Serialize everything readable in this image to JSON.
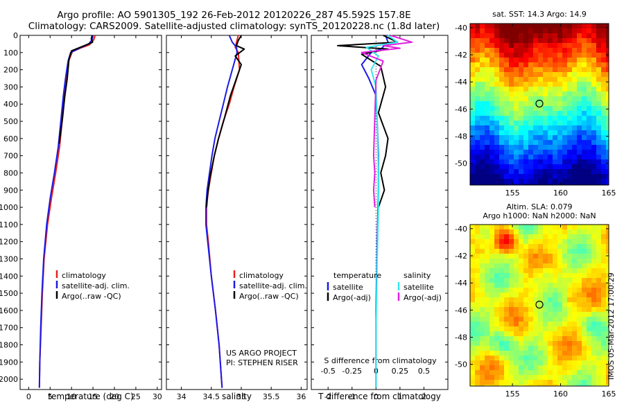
{
  "figure": {
    "title_line1": "Argo profile: AO 5901305_192 26-Feb-2012 20120226_287 45.592S 157.8E",
    "title_line2": "Climatology: CARS2009. Satellite-adjusted climatology: synTS_20120228.nc (1.8d later)",
    "project_note": "US ARGO PROJECT",
    "pi_note": "PI: STEPHEN RISER",
    "timestamp": "IMOS 05-Mar-2012 17:00:29"
  },
  "colors": {
    "climatology": "#e8201c",
    "satellite": "#1a1ae6",
    "argo": "#000000",
    "sal_satellite": "#33e6f0",
    "sal_argo": "#e020e0"
  },
  "chart_data": [
    {
      "type": "line",
      "name": "temperature-profile",
      "xlabel": "temperature (deg C)",
      "ylabel": "",
      "xlim": [
        -2,
        31
      ],
      "ylim": [
        2060,
        0
      ],
      "x_ticks": [
        0,
        5,
        10,
        15,
        20,
        25,
        30
      ],
      "y_ticks": [
        0,
        100,
        200,
        300,
        400,
        500,
        600,
        700,
        800,
        900,
        1000,
        1100,
        1200,
        1300,
        1400,
        1500,
        1600,
        1700,
        1800,
        1900,
        2000
      ],
      "legend": [
        "climatology",
        "satellite-adj. clim.",
        "Argo(..raw -QC)"
      ],
      "series": [
        {
          "name": "climatology",
          "color_key": "climatology",
          "points": [
            [
              15.5,
              0
            ],
            [
              15.2,
              25
            ],
            [
              14.2,
              55
            ],
            [
              12.0,
              75
            ],
            [
              10.2,
              95
            ],
            [
              9.3,
              150
            ],
            [
              8.8,
              250
            ],
            [
              8.3,
              350
            ],
            [
              7.8,
              500
            ],
            [
              7.2,
              650
            ],
            [
              6.3,
              800
            ],
            [
              5.3,
              950
            ],
            [
              4.4,
              1100
            ],
            [
              3.6,
              1300
            ],
            [
              3.2,
              1500
            ],
            [
              2.9,
              1700
            ],
            [
              2.6,
              1900
            ],
            [
              2.5,
              2050
            ]
          ]
        },
        {
          "name": "satellite-adj. clim.",
          "color_key": "satellite",
          "points": [
            [
              15.0,
              0
            ],
            [
              14.8,
              25
            ],
            [
              14.0,
              50
            ],
            [
              11.8,
              75
            ],
            [
              9.8,
              100
            ],
            [
              9.2,
              150
            ],
            [
              8.6,
              250
            ],
            [
              8.1,
              350
            ],
            [
              7.5,
              500
            ],
            [
              6.9,
              650
            ],
            [
              6.0,
              800
            ],
            [
              5.0,
              950
            ],
            [
              4.2,
              1100
            ],
            [
              3.5,
              1300
            ],
            [
              3.1,
              1500
            ],
            [
              2.8,
              1700
            ],
            [
              2.6,
              1900
            ],
            [
              2.5,
              2050
            ]
          ]
        },
        {
          "name": "Argo(..raw -QC)",
          "color_key": "argo",
          "points": [
            [
              14.8,
              0
            ],
            [
              14.6,
              20
            ],
            [
              14.9,
              40
            ],
            [
              13.5,
              55
            ],
            [
              11.5,
              75
            ],
            [
              10.0,
              90
            ],
            [
              9.4,
              140
            ],
            [
              9.0,
              250
            ],
            [
              8.4,
              360
            ],
            [
              7.9,
              480
            ],
            [
              7.1,
              630
            ]
          ]
        }
      ]
    },
    {
      "type": "line",
      "name": "salinity-profile",
      "xlabel": "salinity",
      "ylabel": "",
      "xlim": [
        33.75,
        36.1
      ],
      "ylim": [
        2060,
        0
      ],
      "x_ticks": [
        34,
        34.5,
        35,
        35.5,
        36
      ],
      "x_tick_labels": [
        "34",
        "34.5",
        "35",
        "35.5",
        "36"
      ],
      "legend": [
        "climatology",
        "satellite-adj. clim.",
        "Argo(..raw -QC)"
      ],
      "series": [
        {
          "name": "climatology",
          "color_key": "climatology",
          "points": [
            [
              34.95,
              0
            ],
            [
              34.92,
              40
            ],
            [
              34.9,
              70
            ],
            [
              34.95,
              100
            ],
            [
              34.97,
              200
            ],
            [
              34.88,
              300
            ],
            [
              34.8,
              400
            ],
            [
              34.7,
              500
            ],
            [
              34.62,
              600
            ],
            [
              34.55,
              700
            ],
            [
              34.5,
              800
            ],
            [
              34.45,
              900
            ],
            [
              34.42,
              1000
            ],
            [
              34.42,
              1100
            ],
            [
              34.45,
              1200
            ],
            [
              34.5,
              1400
            ],
            [
              34.57,
              1600
            ],
            [
              34.63,
              1800
            ],
            [
              34.68,
              2050
            ]
          ]
        },
        {
          "name": "satellite-adj. clim.",
          "color_key": "satellite",
          "points": [
            [
              34.8,
              0
            ],
            [
              34.85,
              40
            ],
            [
              34.92,
              70
            ],
            [
              34.93,
              100
            ],
            [
              34.85,
              200
            ],
            [
              34.77,
              300
            ],
            [
              34.7,
              400
            ],
            [
              34.63,
              500
            ],
            [
              34.56,
              600
            ],
            [
              34.51,
              700
            ],
            [
              34.47,
              800
            ],
            [
              34.43,
              900
            ],
            [
              34.41,
              1000
            ],
            [
              34.41,
              1100
            ],
            [
              34.44,
              1200
            ],
            [
              34.5,
              1400
            ],
            [
              34.57,
              1600
            ],
            [
              34.63,
              1800
            ],
            [
              34.68,
              2050
            ]
          ]
        },
        {
          "name": "Argo(..raw -QC)",
          "color_key": "argo",
          "points": [
            [
              35.0,
              0
            ],
            [
              34.95,
              30
            ],
            [
              34.92,
              60
            ],
            [
              35.05,
              80
            ],
            [
              34.9,
              120
            ],
            [
              35.0,
              170
            ],
            [
              34.92,
              250
            ],
            [
              34.82,
              350
            ],
            [
              34.72,
              480
            ],
            [
              34.62,
              600
            ],
            [
              34.55,
              700
            ],
            [
              34.48,
              820
            ],
            [
              34.43,
              950
            ],
            [
              34.42,
              1000
            ]
          ]
        }
      ]
    },
    {
      "type": "line",
      "name": "difference-profile",
      "xlabel": "T difference from climatology",
      "top_label": "S difference from climatology",
      "xlim": [
        -2.7,
        3.0
      ],
      "ylim": [
        2060,
        0
      ],
      "x_ticks": [
        -2,
        -1,
        0,
        1,
        2
      ],
      "x_tick_labels": [
        "-2",
        "-1",
        "0",
        "1",
        "2"
      ],
      "s_ticks": [
        -0.5,
        -0.25,
        0,
        0.25,
        0.5
      ],
      "s_tick_labels": [
        "-0.5",
        "-0.25",
        "0",
        "0.25",
        "0.5"
      ],
      "legend_headers": [
        "temperature",
        "salinity"
      ],
      "legend": [
        "satellite",
        "Argo(-adj)",
        "satellite",
        "Argo(-adj)"
      ],
      "series": [
        {
          "name": "T satellite",
          "color_key": "satellite",
          "points": [
            [
              0.4,
              0
            ],
            [
              0.5,
              40
            ],
            [
              0.2,
              80
            ],
            [
              -0.2,
              100
            ],
            [
              -0.6,
              170
            ],
            [
              -0.3,
              250
            ],
            [
              0.0,
              350
            ],
            [
              0.05,
              500
            ],
            [
              0.1,
              700
            ],
            [
              0.1,
              900
            ],
            [
              0.05,
              1200
            ],
            [
              0.0,
              1600
            ],
            [
              0.0,
              2050
            ]
          ]
        },
        {
          "name": "T Argo(-adj)",
          "color_key": "argo",
          "points": [
            [
              0.3,
              0
            ],
            [
              0.9,
              40
            ],
            [
              -1.6,
              60
            ],
            [
              0.5,
              80
            ],
            [
              -0.6,
              110
            ],
            [
              0.2,
              180
            ],
            [
              0.4,
              300
            ],
            [
              0.1,
              450
            ],
            [
              0.5,
              600
            ],
            [
              0.4,
              700
            ],
            [
              0.2,
              800
            ],
            [
              0.35,
              900
            ],
            [
              0.1,
              1000
            ]
          ]
        },
        {
          "name": "S satellite",
          "color_key": "sal_satellite",
          "points": [
            [
              0.5,
              0
            ],
            [
              0.9,
              40
            ],
            [
              -0.4,
              70
            ],
            [
              0.1,
              120
            ],
            [
              -0.2,
              200
            ],
            [
              0.0,
              300
            ],
            [
              0.05,
              500
            ],
            [
              0.1,
              800
            ],
            [
              0.1,
              1000
            ],
            [
              0.05,
              1300
            ],
            [
              0.0,
              1700
            ],
            [
              0.0,
              2050
            ]
          ]
        },
        {
          "name": "S Argo(-adj)",
          "color_key": "sal_argo",
          "points": [
            [
              0.6,
              0
            ],
            [
              1.5,
              40
            ],
            [
              0.3,
              60
            ],
            [
              1.0,
              75
            ],
            [
              -0.6,
              100
            ],
            [
              0.3,
              150
            ],
            [
              0.0,
              260
            ],
            [
              -0.1,
              700
            ],
            [
              -0.05,
              800
            ],
            [
              -0.1,
              900
            ],
            [
              -0.05,
              1000
            ]
          ]
        }
      ]
    },
    {
      "type": "heatmap",
      "name": "sst-map",
      "title": "sat. SST: 14.3 Argo: 14.9",
      "x_ticks": [
        155,
        160,
        165
      ],
      "y_ticks": [
        -40,
        -42,
        -44,
        -46,
        -48,
        -50
      ],
      "xlim": [
        150.6,
        165
      ],
      "ylim": [
        -51.6,
        -39.7
      ],
      "marker": {
        "lon": 157.8,
        "lat": -45.6
      }
    },
    {
      "type": "heatmap",
      "name": "sla-map",
      "title_line1": "Altim. SLA: 0.079",
      "title_line2": "Argo h1000: NaN h2000: NaN",
      "x_ticks": [
        155,
        160,
        165
      ],
      "y_ticks": [
        -40,
        -42,
        -44,
        -46,
        -48,
        -50
      ],
      "xlim": [
        150.6,
        165
      ],
      "ylim": [
        -51.6,
        -39.7
      ],
      "marker": {
        "lon": 157.8,
        "lat": -45.6
      }
    }
  ]
}
